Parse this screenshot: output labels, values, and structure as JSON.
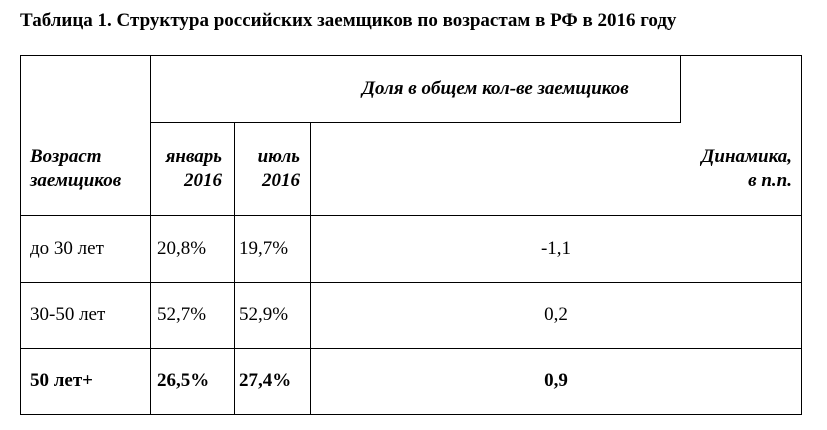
{
  "title": "Таблица 1. Структура российских заемщиков по возрастам в РФ в 2016 году",
  "table": {
    "header": {
      "group": "Доля в общем кол-ве заемщиков",
      "age": [
        "Возраст",
        "заемщиков"
      ],
      "jan": [
        "январь",
        "2016"
      ],
      "jul": [
        "июль",
        "2016"
      ],
      "dyn": [
        "Динамика,",
        "в п.п."
      ]
    },
    "rows": [
      [
        "до 30 лет",
        "20,8%",
        "19,7%",
        "-1,1"
      ],
      [
        "30-50 лет",
        "52,7%",
        "52,9%",
        "0,2"
      ],
      [
        "50 лет+",
        "26,5%",
        "27,4%",
        "0,9"
      ]
    ],
    "bold_rows": [
      2
    ]
  }
}
